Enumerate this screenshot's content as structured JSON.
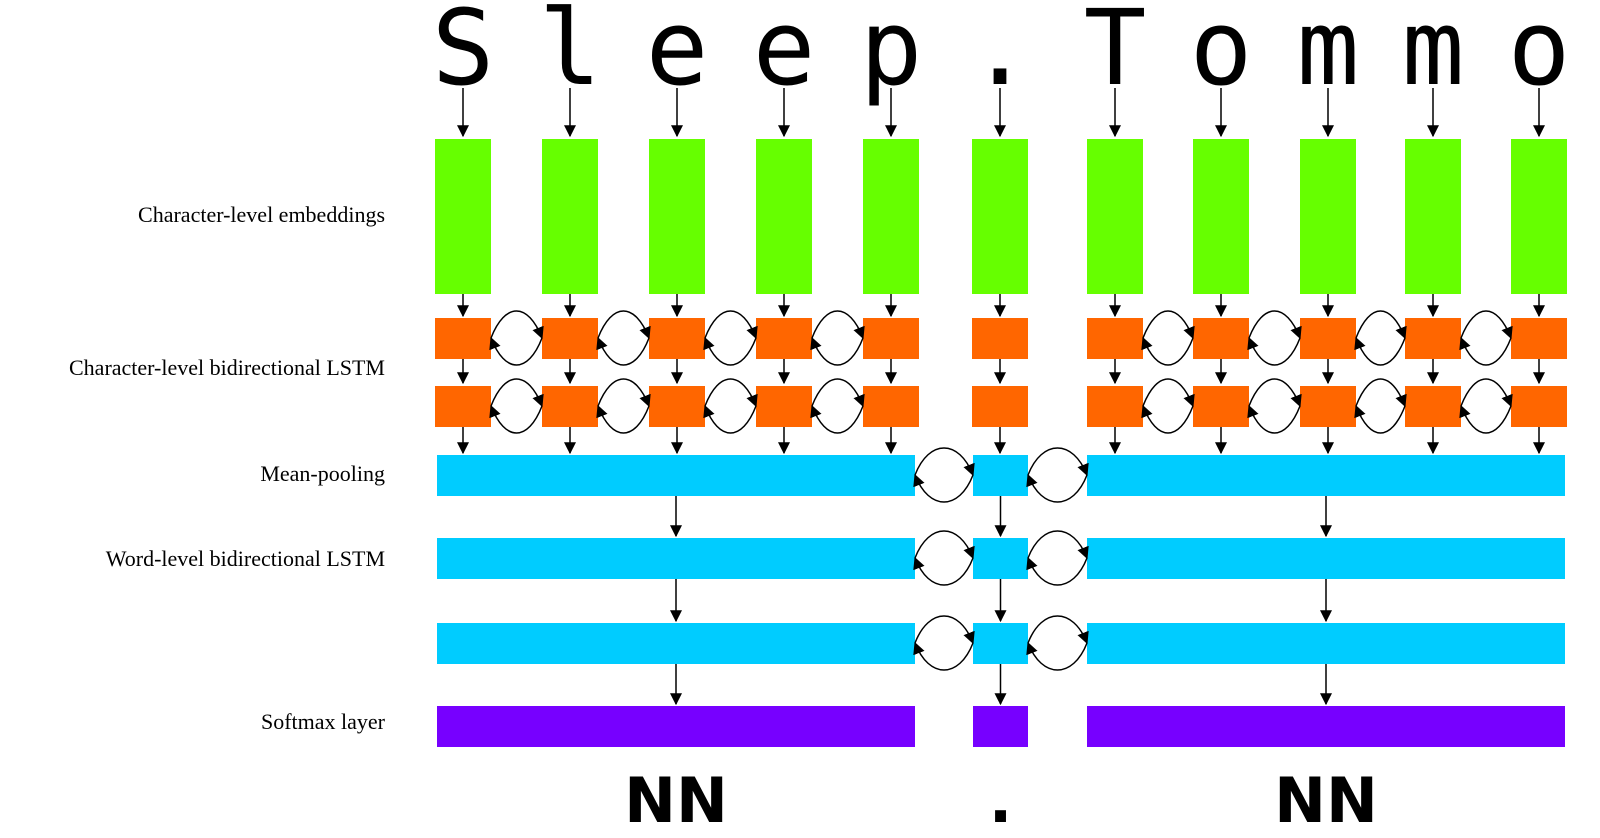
{
  "labels": [
    "Character-level embeddings",
    "Character-level bidirectional LSTM",
    "Mean-pooling",
    "Word-level bidirectional LSTM",
    "Softmax layer"
  ],
  "characters": [
    "S",
    "l",
    "e",
    "e",
    "p",
    ".",
    "T",
    "o",
    "m",
    "m",
    "o"
  ],
  "tags": [
    "NN",
    ".",
    "NN"
  ]
}
